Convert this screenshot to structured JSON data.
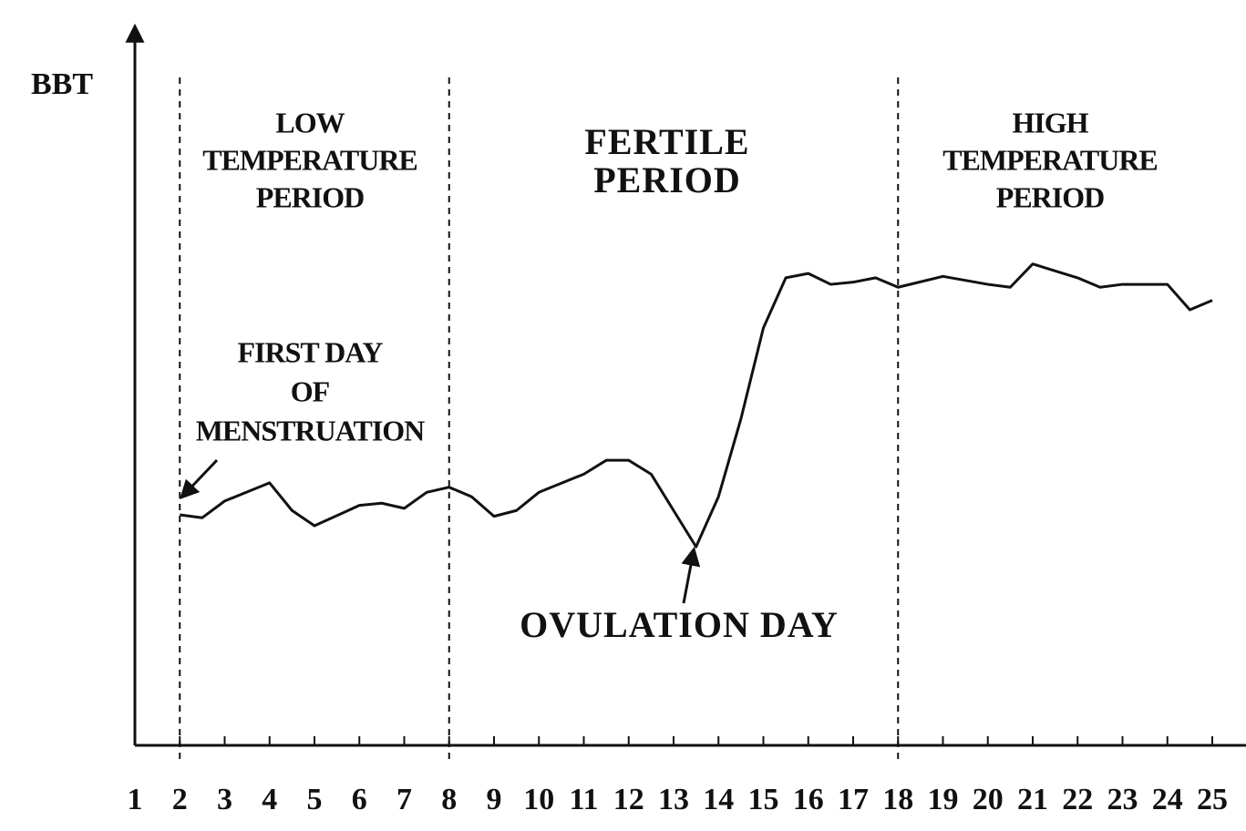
{
  "chart_data": {
    "type": "line",
    "y_label": "BBT",
    "x": [
      2,
      2.5,
      3,
      4,
      4.5,
      5,
      6,
      6.5,
      7,
      7.5,
      8,
      8.5,
      9,
      9.5,
      10,
      11,
      11.5,
      12,
      12.5,
      13,
      13.5,
      14,
      14.5,
      15,
      15.5,
      16,
      16.5,
      17,
      17.5,
      18,
      19,
      20,
      20.5,
      21,
      22,
      22.5,
      23,
      24,
      24.5,
      25
    ],
    "series": [
      {
        "name": "BBT",
        "color": "#111111",
        "values": [
          31.7,
          31.3,
          33.6,
          36.1,
          32.3,
          30.2,
          33,
          33.3,
          32.6,
          34.8,
          35.5,
          34.2,
          31.5,
          32.3,
          34.8,
          37.3,
          39.2,
          39.2,
          37.3,
          32.3,
          27.3,
          34.2,
          44.9,
          57.4,
          64.3,
          64.9,
          63.4,
          63.7,
          64.3,
          63,
          64.5,
          63.4,
          63,
          66.2,
          64.3,
          63,
          63.4,
          63.4,
          59.9,
          61.2
        ]
      }
    ],
    "xlim": [
      1,
      25
    ],
    "ylim": [
      0,
      100
    ],
    "xticks": [
      1,
      2,
      3,
      4,
      5,
      6,
      7,
      8,
      9,
      10,
      11,
      12,
      13,
      14,
      15,
      16,
      17,
      18,
      19,
      20,
      21,
      22,
      23,
      24,
      25
    ],
    "dividers": [
      2,
      8,
      18
    ],
    "annotations": {
      "low": [
        "LOW",
        "TEMPERATURE",
        "PERIOD"
      ],
      "fertile": [
        "FERTILE",
        "PERIOD"
      ],
      "high": [
        "HIGH",
        "TEMPERATURE",
        "PERIOD"
      ],
      "menstruation": [
        "FIRST DAY",
        "OF",
        "MENSTRUATION"
      ],
      "ovulation": "OVULATION DAY"
    }
  }
}
